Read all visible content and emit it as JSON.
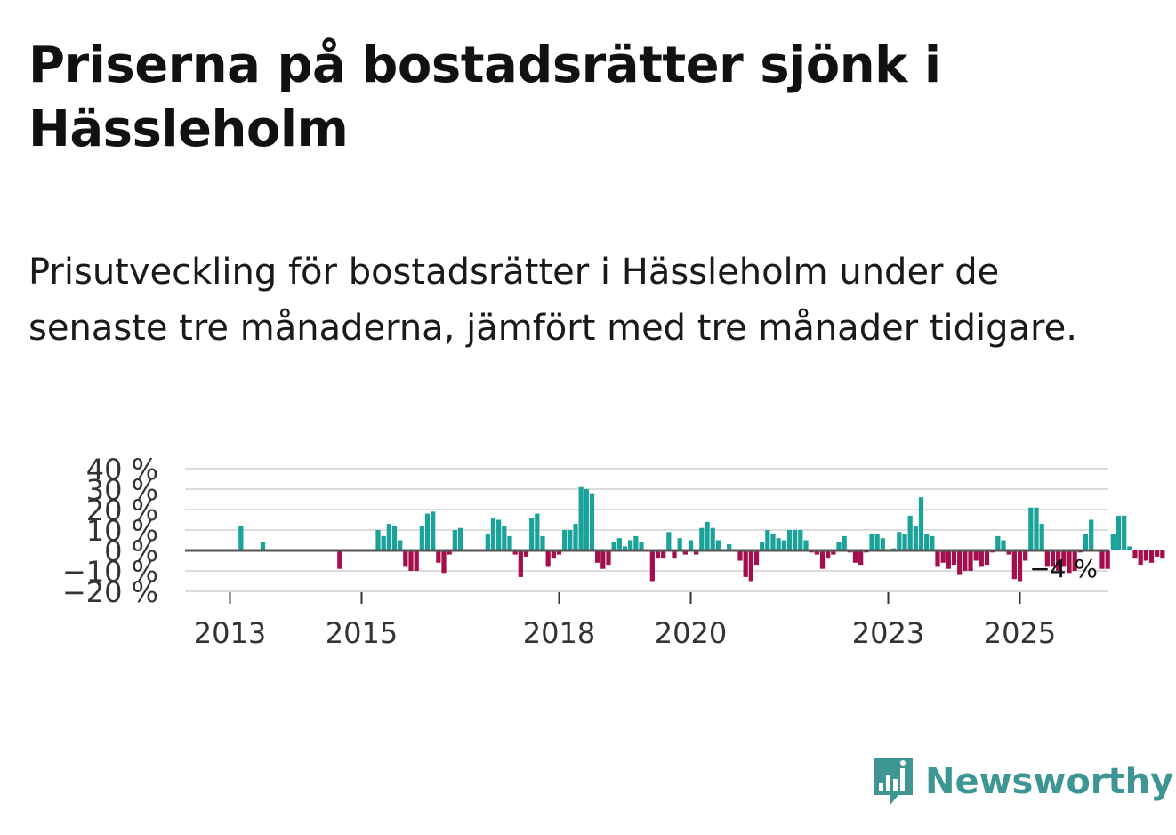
{
  "title": "Priserna på bostadsrätter sjönk i Hässleholm",
  "subtitle": "Prisutveckling för bostadsrätter i Hässleholm under de senaste tre månaderna, jämfört med tre månader tidigare.",
  "brand": {
    "name": "Newsworthy",
    "color": "#3d9694",
    "icon": "newsworthy-chart-bubble-icon"
  },
  "colors": {
    "positive": "#1aa39a",
    "negative": "#a30e4c",
    "grid": "#dddddd",
    "zero_line": "#555555"
  },
  "chart_data": {
    "type": "bar",
    "title": "Priserna på bostadsrätter sjönk i Hässleholm",
    "ylabel": "",
    "xlabel": "",
    "ylim": [
      -20,
      40
    ],
    "yticks": [
      40,
      30,
      20,
      10,
      0,
      -10,
      -20
    ],
    "ytick_labels": [
      "40 %",
      "30 %",
      "20 %",
      "10 %",
      "0 %",
      "−10 %",
      "−20 %"
    ],
    "xticks": [
      2013,
      2015,
      2018,
      2020,
      2023,
      2025
    ],
    "xtick_labels": [
      "2013",
      "2015",
      "2018",
      "2020",
      "2023",
      "2025"
    ],
    "start_year": 2012.25,
    "months_per_bar": 1,
    "last_value_label": "−4 %",
    "grid": true,
    "values": [
      0,
      0,
      0,
      0,
      0,
      0,
      0,
      0,
      0,
      0,
      0,
      12,
      0,
      0,
      0,
      4,
      0,
      0,
      0,
      0,
      0,
      0,
      0,
      0,
      0,
      0,
      0,
      0,
      0,
      -9,
      0,
      0,
      0,
      0,
      0,
      0,
      10,
      7,
      13,
      12,
      5,
      -8,
      -10,
      -10,
      12,
      18,
      19,
      -6,
      -11,
      -2,
      10,
      11,
      0,
      0,
      0,
      0,
      8,
      16,
      15,
      12,
      7,
      -2,
      -13,
      -3,
      16,
      18,
      7,
      -8,
      -4,
      -2,
      10,
      10,
      13,
      31,
      30,
      28,
      -6,
      -9,
      -7,
      4,
      6,
      2,
      5,
      7,
      4,
      0,
      -15,
      -4,
      -4,
      9,
      -4,
      6,
      -2,
      5,
      -2,
      11,
      14,
      11,
      5,
      0,
      3,
      0,
      -5,
      -13,
      -15,
      -7,
      4,
      10,
      8,
      6,
      5,
      10,
      10,
      10,
      5,
      -1,
      -2,
      -9,
      -4,
      -2,
      4,
      7,
      -1,
      -6,
      -7,
      -1,
      8,
      8,
      6,
      0,
      1,
      9,
      8,
      17,
      12,
      26,
      8,
      7,
      -8,
      -6,
      -9,
      -7,
      -12,
      -10,
      -10,
      -5,
      -8,
      -7,
      -1,
      7,
      5,
      -2,
      -14,
      -15,
      -5,
      21,
      21,
      13,
      -8,
      -8,
      -10,
      -8,
      -11,
      -10,
      -1,
      8,
      15,
      0,
      -9,
      -9,
      8,
      17,
      17,
      2,
      -4,
      -7,
      -5,
      -6,
      -3,
      -4
    ]
  }
}
